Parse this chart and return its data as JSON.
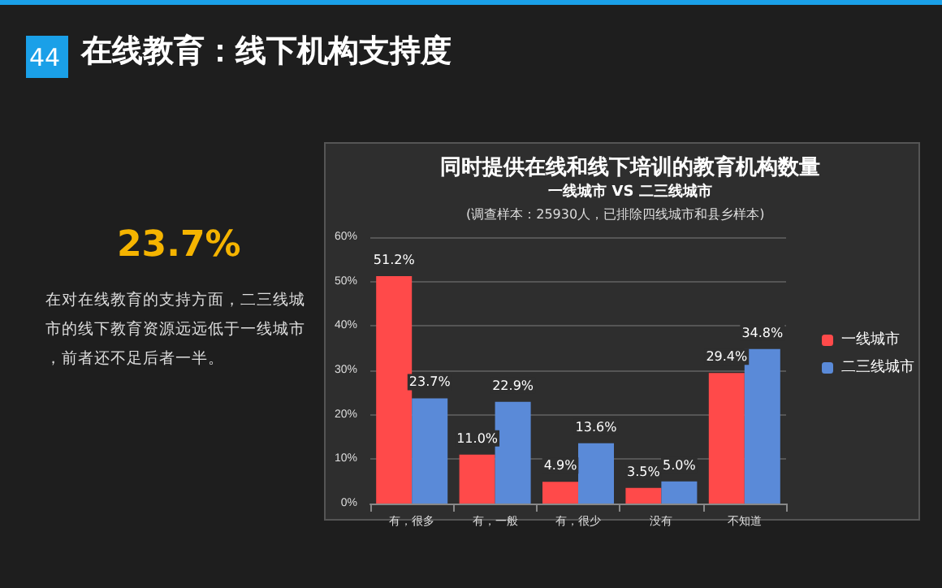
{
  "chart_data": {
    "type": "bar",
    "title": "同时提供在线和线下培训的教育机构数量",
    "subtitle": "一线城市 VS 二三线城市",
    "annotations": [
      "44",
      "在线教育：线下机构支持度",
      "23.7%",
      "在对在线教育的支持方面，二三线城市的线下教育资源远远低于一线城市，前者还不足后者一半。",
      "(调查样本：25930人，已排除四线城市和县乡样本)"
    ],
    "categories": [
      "有，很多",
      "有，一般",
      "有，很少",
      "没有",
      "不知道"
    ],
    "series": [
      {
        "name": "一线城市",
        "color": "#ff4a4a",
        "values": [
          51.2,
          11.0,
          4.9,
          3.5,
          29.4
        ],
        "value_labels": [
          "51.2%",
          "11.0%",
          "4.9%",
          "3.5%",
          "29.4%"
        ]
      },
      {
        "name": "二三线城市",
        "color": "#5a8ad8",
        "values": [
          23.7,
          22.9,
          13.6,
          5.0,
          34.8
        ],
        "value_labels": [
          "23.7%",
          "22.9%",
          "13.6%",
          "5.0%",
          "34.8%"
        ]
      }
    ],
    "ylim": [
      0,
      60
    ],
    "yticks": [
      {
        "value": 0,
        "label": "0%"
      },
      {
        "value": 10,
        "label": "10%"
      },
      {
        "value": 20,
        "label": "20%"
      },
      {
        "value": 30,
        "label": "30%"
      },
      {
        "value": 40,
        "label": "40%"
      },
      {
        "value": 50,
        "label": "50%"
      },
      {
        "value": 60,
        "label": "60%"
      }
    ],
    "grid": "y",
    "legend": "right"
  }
}
